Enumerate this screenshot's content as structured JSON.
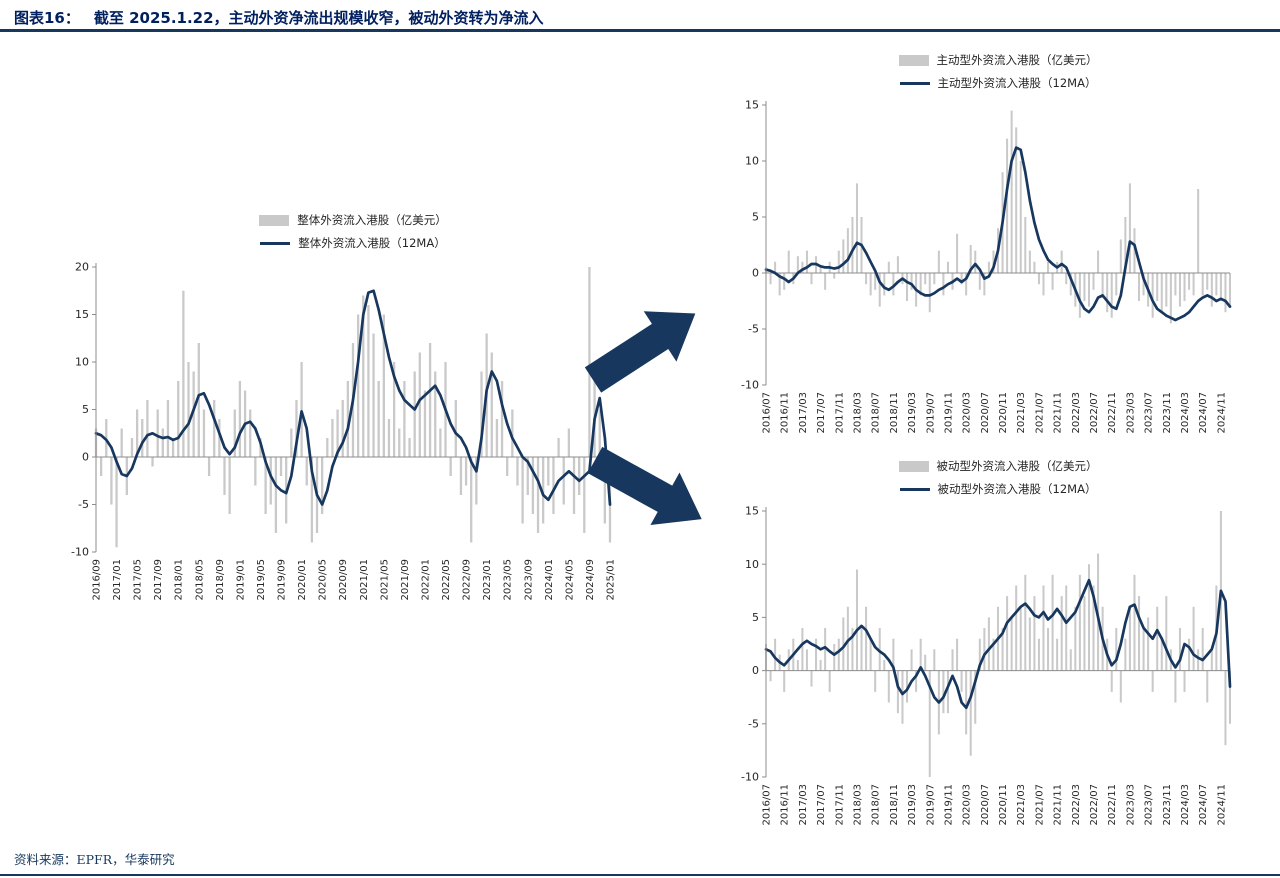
{
  "header": {
    "label": "图表16：",
    "title": "截至 2025.1.22，主动外资净流出规模收窄，被动外资转为净流入"
  },
  "footer": {
    "source": "资料来源：EPFR，华泰研究"
  },
  "colors": {
    "navy": "#17375e",
    "bar_gray": "#c9c9c9",
    "title_navy": "#001f5f"
  },
  "chart_data": [
    {
      "id": "overall",
      "type": "bar+line",
      "legend_bar": "整体外资流入港股（亿美元）",
      "legend_ma": "整体外资流入港股（12MA）",
      "ylim": [
        -10,
        20
      ],
      "yticks": [
        20,
        15,
        10,
        5,
        0,
        -5,
        -10
      ],
      "x_tick_every": 4,
      "x_tick_labels": [
        "2016/09",
        "2017/01",
        "2017/05",
        "2017/09",
        "2018/01",
        "2018/05",
        "2018/09",
        "2019/01",
        "2019/05",
        "2019/09",
        "2020/01",
        "2020/05",
        "2020/09",
        "2021/01",
        "2021/05",
        "2021/09",
        "2022/01",
        "2022/05",
        "2022/09",
        "2023/01",
        "2023/05",
        "2023/09",
        "2024/01",
        "2024/05",
        "2024/09",
        "2025/01"
      ],
      "bars": [
        3,
        -2,
        4,
        -5,
        -9.5,
        3,
        -4,
        2,
        5,
        4,
        6,
        -1,
        5,
        3,
        6,
        2,
        8,
        17.5,
        10,
        9,
        12,
        5,
        -2,
        6,
        4,
        -4,
        -6,
        5,
        8,
        7,
        5,
        -3,
        2,
        -6,
        -5,
        -8,
        -2,
        -7,
        3,
        6,
        10,
        -3,
        -9,
        -8,
        -6,
        2,
        4,
        5,
        6,
        8,
        12,
        15,
        17,
        16,
        13,
        8,
        15,
        4,
        10,
        3,
        8,
        2,
        9,
        11,
        7,
        12,
        9,
        3,
        10,
        -2,
        6,
        -4,
        -3,
        -9,
        -5,
        9,
        13,
        11,
        4,
        8,
        -2,
        5,
        -3,
        -7,
        -4,
        -6,
        -8,
        -7,
        -3,
        -6,
        2,
        -5,
        3,
        -6,
        -4,
        -8,
        20,
        9,
        5,
        -7,
        -9
      ],
      "ma": [
        2.5,
        2.3,
        1.8,
        1.0,
        -0.5,
        -1.8,
        -2.0,
        -1.2,
        0.3,
        1.5,
        2.3,
        2.5,
        2.2,
        2.0,
        2.1,
        1.8,
        2.0,
        2.8,
        3.5,
        5.0,
        6.5,
        6.7,
        5.5,
        4.0,
        2.5,
        1.0,
        0.3,
        1.0,
        2.5,
        3.5,
        3.7,
        3.0,
        1.5,
        -0.5,
        -2.0,
        -3.0,
        -3.5,
        -3.8,
        -2.0,
        1.5,
        4.8,
        3.0,
        -1.5,
        -4.0,
        -5.0,
        -3.5,
        -1.0,
        0.5,
        1.5,
        3.0,
        6.0,
        10.0,
        15.0,
        17.3,
        17.5,
        15.5,
        13.0,
        10.5,
        8.5,
        7.0,
        6.0,
        5.5,
        5.0,
        6.0,
        6.5,
        7.0,
        7.5,
        6.5,
        5.0,
        3.5,
        2.5,
        2.0,
        1.0,
        -0.5,
        -1.5,
        2.0,
        7.0,
        9.0,
        8.0,
        5.5,
        3.5,
        2.0,
        1.0,
        0.0,
        -0.5,
        -1.5,
        -2.5,
        -4.0,
        -4.5,
        -3.5,
        -2.5,
        -2.0,
        -1.5,
        -2.0,
        -2.5,
        -2.0,
        -1.5,
        4.0,
        6.2,
        2.0,
        -5.0
      ]
    },
    {
      "id": "active",
      "type": "bar+line",
      "legend_bar": "主动型外资流入港股（亿美元）",
      "legend_ma": "主动型外资流入港股（12MA）",
      "ylim": [
        -10,
        15
      ],
      "yticks": [
        15,
        10,
        5,
        0,
        -5,
        -10
      ],
      "x_tick_every": 4,
      "x_tick_labels": [
        "2016/07",
        "2016/11",
        "2017/03",
        "2017/07",
        "2017/11",
        "2018/03",
        "2018/07",
        "2018/11",
        "2019/03",
        "2019/07",
        "2019/11",
        "2020/03",
        "2020/07",
        "2020/11",
        "2021/03",
        "2021/07",
        "2021/11",
        "2022/03",
        "2022/07",
        "2022/11",
        "2023/03",
        "2023/07",
        "2023/11",
        "2024/03",
        "2024/07",
        "2024/11"
      ],
      "bars": [
        0.5,
        -1,
        1,
        -2,
        -1.5,
        2,
        -1,
        1.5,
        1,
        2,
        -1,
        1.5,
        0.5,
        -1.5,
        1,
        -0.5,
        2,
        3,
        4,
        5,
        8,
        5,
        -1,
        -2,
        -1.5,
        -3,
        -2,
        1,
        -2,
        1.5,
        -1,
        -2.5,
        -1.5,
        -3,
        -2,
        -1,
        -3.5,
        -1,
        2,
        -2,
        1,
        -1.5,
        3.5,
        -1,
        -2,
        2.5,
        2,
        -1.5,
        -2,
        1,
        2,
        4,
        9,
        12,
        14.5,
        13,
        10,
        5,
        2,
        1,
        -1,
        -2,
        1,
        -1.5,
        1,
        2,
        -1,
        -2,
        -3,
        -4,
        -2.5,
        -3,
        -1.5,
        2,
        -2,
        -3.5,
        -4,
        -2,
        3,
        5,
        8,
        4,
        -2.5,
        -2,
        -3,
        -4,
        -2.5,
        -3.5,
        -3,
        -4.5,
        -2,
        -3,
        -2.5,
        -1.5,
        -2,
        7.5,
        -2,
        -1.5,
        -3,
        -2,
        -2.5,
        -3.5,
        -3
      ],
      "ma": [
        0.3,
        0.2,
        0.0,
        -0.3,
        -0.5,
        -0.8,
        -0.5,
        0.0,
        0.3,
        0.5,
        0.8,
        0.8,
        0.6,
        0.5,
        0.5,
        0.4,
        0.5,
        0.8,
        1.2,
        2.0,
        2.7,
        2.5,
        1.8,
        1.0,
        0.2,
        -0.8,
        -1.3,
        -1.5,
        -1.2,
        -0.8,
        -0.5,
        -0.8,
        -1.0,
        -1.5,
        -1.8,
        -2.0,
        -2.0,
        -1.8,
        -1.5,
        -1.3,
        -1.0,
        -0.8,
        -0.5,
        -0.8,
        -0.5,
        0.3,
        0.8,
        0.3,
        -0.5,
        -0.3,
        0.5,
        2.0,
        4.5,
        7.5,
        10.0,
        11.2,
        11.0,
        9.0,
        6.5,
        4.5,
        3.0,
        2.0,
        1.2,
        0.8,
        0.5,
        0.8,
        0.5,
        -0.5,
        -1.5,
        -2.5,
        -3.2,
        -3.5,
        -3.0,
        -2.2,
        -2.0,
        -2.5,
        -3.0,
        -3.2,
        -2.0,
        0.5,
        2.8,
        2.5,
        1.0,
        -0.5,
        -1.5,
        -2.5,
        -3.2,
        -3.5,
        -3.8,
        -4.0,
        -4.2,
        -4.0,
        -3.8,
        -3.5,
        -3.0,
        -2.5,
        -2.2,
        -2.0,
        -2.2,
        -2.5,
        -2.3,
        -2.5,
        -3.0
      ]
    },
    {
      "id": "passive",
      "type": "bar+line",
      "legend_bar": "被动型外资流入港股（亿美元）",
      "legend_ma": "被动型外资流入港股（12MA）",
      "ylim": [
        -10,
        15
      ],
      "yticks": [
        15,
        10,
        5,
        0,
        -5,
        -10
      ],
      "x_tick_every": 4,
      "x_tick_labels": [
        "2016/07",
        "2016/11",
        "2017/03",
        "2017/07",
        "2017/11",
        "2018/03",
        "2018/07",
        "2018/11",
        "2019/03",
        "2019/07",
        "2019/11",
        "2020/03",
        "2020/07",
        "2020/11",
        "2021/03",
        "2021/07",
        "2021/11",
        "2022/03",
        "2022/07",
        "2022/11",
        "2023/03",
        "2023/07",
        "2023/11",
        "2024/03",
        "2024/07",
        "2024/11"
      ],
      "bars": [
        2.5,
        -1,
        3,
        1.5,
        -2,
        2,
        3,
        1,
        4,
        2,
        -1.5,
        3,
        1,
        4,
        -2,
        2.5,
        3,
        5,
        6,
        4,
        9.5,
        4,
        6,
        3,
        -2,
        4,
        1,
        -3,
        3,
        -4,
        -5,
        -3,
        2,
        -2,
        3,
        1.5,
        -10,
        2,
        -6,
        -4,
        -4,
        2,
        3,
        -2,
        -6,
        -8,
        -5,
        3,
        4,
        5,
        3,
        6,
        4,
        7,
        5,
        8,
        6,
        9,
        5,
        7,
        3,
        8,
        4,
        9,
        3,
        7,
        8,
        2,
        6,
        9,
        7,
        10,
        8,
        11,
        6,
        3,
        -2,
        4,
        -3,
        3,
        6,
        9,
        7,
        4,
        5,
        -2,
        6,
        3,
        7,
        2,
        -3,
        4,
        -2,
        3,
        6,
        2,
        4,
        -3,
        2,
        8,
        15,
        -7,
        -5
      ],
      "ma": [
        2.0,
        1.8,
        1.2,
        0.8,
        0.5,
        1.0,
        1.5,
        2.0,
        2.5,
        2.8,
        2.5,
        2.3,
        2.0,
        2.2,
        1.8,
        1.5,
        1.8,
        2.2,
        2.8,
        3.2,
        3.8,
        4.2,
        3.8,
        3.0,
        2.2,
        1.8,
        1.5,
        1.0,
        0.3,
        -1.5,
        -2.2,
        -1.8,
        -1.0,
        -0.5,
        0.3,
        -0.5,
        -1.5,
        -2.5,
        -3.0,
        -2.5,
        -1.5,
        -0.5,
        -1.5,
        -3.0,
        -3.5,
        -2.5,
        -1.0,
        0.5,
        1.5,
        2.0,
        2.5,
        3.0,
        3.5,
        4.5,
        5.0,
        5.5,
        6.0,
        6.3,
        5.8,
        5.2,
        5.0,
        5.5,
        4.8,
        5.2,
        5.8,
        5.2,
        4.5,
        5.0,
        5.5,
        6.5,
        7.5,
        8.5,
        7.0,
        5.0,
        3.0,
        1.5,
        0.5,
        1.0,
        2.5,
        4.5,
        6.0,
        6.2,
        5.0,
        4.0,
        3.5,
        3.0,
        3.8,
        3.0,
        2.0,
        1.0,
        0.3,
        1.0,
        2.5,
        2.2,
        1.5,
        1.2,
        1.0,
        1.5,
        2.0,
        3.5,
        7.5,
        6.5,
        -1.5
      ]
    }
  ]
}
